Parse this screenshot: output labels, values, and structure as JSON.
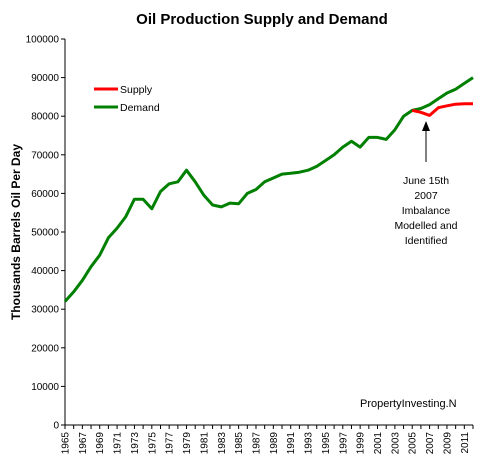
{
  "chart_data": {
    "type": "line",
    "title": "Oil Production Supply and Demand",
    "xlabel": "",
    "ylabel": "Thousands Barrels Oil Per Day",
    "xlim": [
      1965,
      2012
    ],
    "ylim": [
      0,
      100000
    ],
    "y_ticks": [
      0,
      10000,
      20000,
      30000,
      40000,
      50000,
      60000,
      70000,
      80000,
      90000,
      100000
    ],
    "x_ticks": [
      "1965",
      "1967",
      "1969",
      "1971",
      "1973",
      "1975",
      "1977",
      "1979",
      "1981",
      "1983",
      "1985",
      "1987",
      "1989",
      "1991",
      "1993",
      "1995",
      "1997",
      "1999",
      "2001",
      "2003",
      "2005",
      "2007",
      "2009",
      "2011"
    ],
    "grid": false,
    "legend_position": "top-left",
    "series": [
      {
        "name": "Supply",
        "color": "#ff0000",
        "x": [
          2005,
          2006,
          2007,
          2008,
          2009,
          2010,
          2011,
          2012
        ],
        "y": [
          81500,
          81000,
          80200,
          82200,
          82700,
          83100,
          83200,
          83200
        ]
      },
      {
        "name": "Demand",
        "color": "#008000",
        "x": [
          1965,
          1966,
          1967,
          1968,
          1969,
          1970,
          1971,
          1972,
          1973,
          1974,
          1975,
          1976,
          1977,
          1978,
          1979,
          1980,
          1981,
          1982,
          1983,
          1984,
          1985,
          1986,
          1987,
          1988,
          1989,
          1990,
          1991,
          1992,
          1993,
          1994,
          1995,
          1996,
          1997,
          1998,
          1999,
          2000,
          2001,
          2002,
          2003,
          2004,
          2005,
          2006,
          2007,
          2008,
          2009,
          2010,
          2011,
          2012
        ],
        "y": [
          32000,
          34500,
          37500,
          41000,
          44000,
          48500,
          51000,
          54000,
          58500,
          58500,
          56000,
          60500,
          62500,
          63000,
          66000,
          63000,
          59500,
          57000,
          56500,
          57500,
          57300,
          60000,
          61000,
          63000,
          64000,
          65000,
          65200,
          65500,
          66000,
          67000,
          68500,
          70000,
          72000,
          73500,
          72000,
          74500,
          74500,
          74000,
          76500,
          80000,
          81500,
          82000,
          83000,
          84500,
          86000,
          87000,
          88500,
          90000
        ]
      }
    ],
    "annotations": [
      {
        "lines": [
          "June 15th",
          "2007",
          "Imbalance",
          "Modelled and",
          "Identified"
        ],
        "points_to_x": 2007,
        "points_to_y": 79000
      }
    ],
    "watermark": "PropertyInvesting.N"
  }
}
